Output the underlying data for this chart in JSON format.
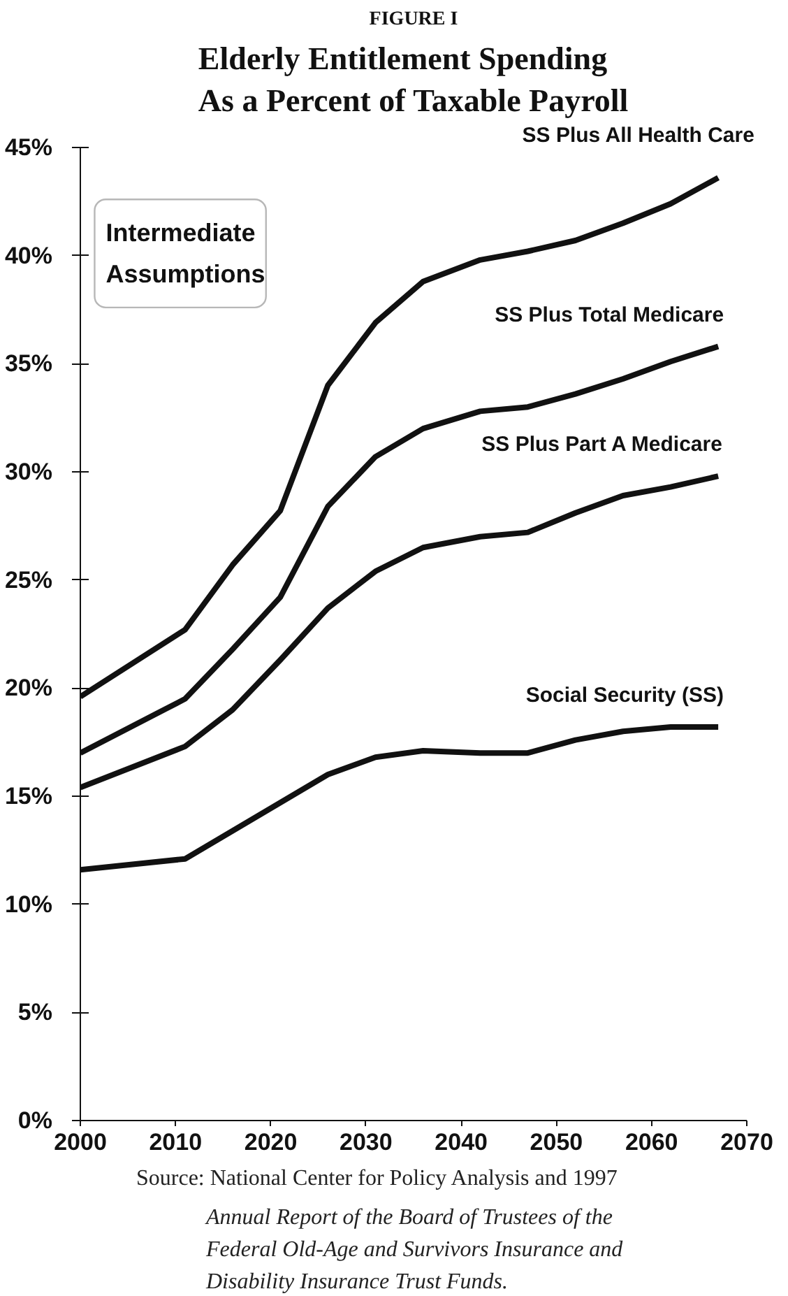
{
  "chart_data": {
    "type": "line",
    "title": "Elderly Entitlement Spending\nAs a Percent of Taxable Payroll",
    "annotations": [
      "FIGURE I",
      "Intermediate\nAssumptions",
      "Source: National Center for Policy Analysis and 1997 Annual Report of the Board of Trustees of the Federal Old-Age and Survivors Insurance and Disability Insurance Trust Funds."
    ],
    "x": [
      2000,
      2011,
      2016,
      2021,
      2026,
      2031,
      2036,
      2042,
      2047,
      2052,
      2057,
      2062,
      2067
    ],
    "series": [
      {
        "name": "SS Plus All Health Care",
        "color": "#111111",
        "values": [
          19.6,
          22.7,
          25.7,
          28.2,
          34.0,
          36.9,
          38.8,
          39.8,
          40.2,
          40.7,
          41.5,
          42.4,
          43.6
        ]
      },
      {
        "name": "SS Plus Total Medicare",
        "color": "#111111",
        "values": [
          17.0,
          19.5,
          21.8,
          24.2,
          28.4,
          30.7,
          32.0,
          32.8,
          33.0,
          33.6,
          34.3,
          35.1,
          35.8
        ]
      },
      {
        "name": "SS Plus Part A Medicare",
        "color": "#111111",
        "values": [
          15.4,
          17.3,
          19.0,
          21.3,
          23.7,
          25.4,
          26.5,
          27.0,
          27.2,
          28.1,
          28.9,
          29.3,
          29.8
        ]
      },
      {
        "name": "Social Security (SS)",
        "color": "#111111",
        "values": [
          11.6,
          12.1,
          13.4,
          14.7,
          16.0,
          16.8,
          17.1,
          17.0,
          17.0,
          17.6,
          18.0,
          18.2,
          18.2
        ]
      }
    ],
    "xlim": [
      2000,
      2070
    ],
    "ylim": [
      0,
      45
    ],
    "xticks": [
      2000,
      2010,
      2020,
      2030,
      2040,
      2050,
      2060,
      2070
    ],
    "yticks": [
      {
        "value": 0,
        "label": "0%"
      },
      {
        "value": 5,
        "label": "5%"
      },
      {
        "value": 10,
        "label": "10%"
      },
      {
        "value": 15,
        "label": "15%"
      },
      {
        "value": 20,
        "label": "20%"
      },
      {
        "value": 25,
        "label": "25%"
      },
      {
        "value": 30,
        "label": "30%"
      },
      {
        "value": 35,
        "label": "35%"
      },
      {
        "value": 40,
        "label": "40%"
      },
      {
        "value": 45,
        "label": "45%"
      }
    ],
    "grid": false,
    "line_style": "solid",
    "marker": "none"
  }
}
